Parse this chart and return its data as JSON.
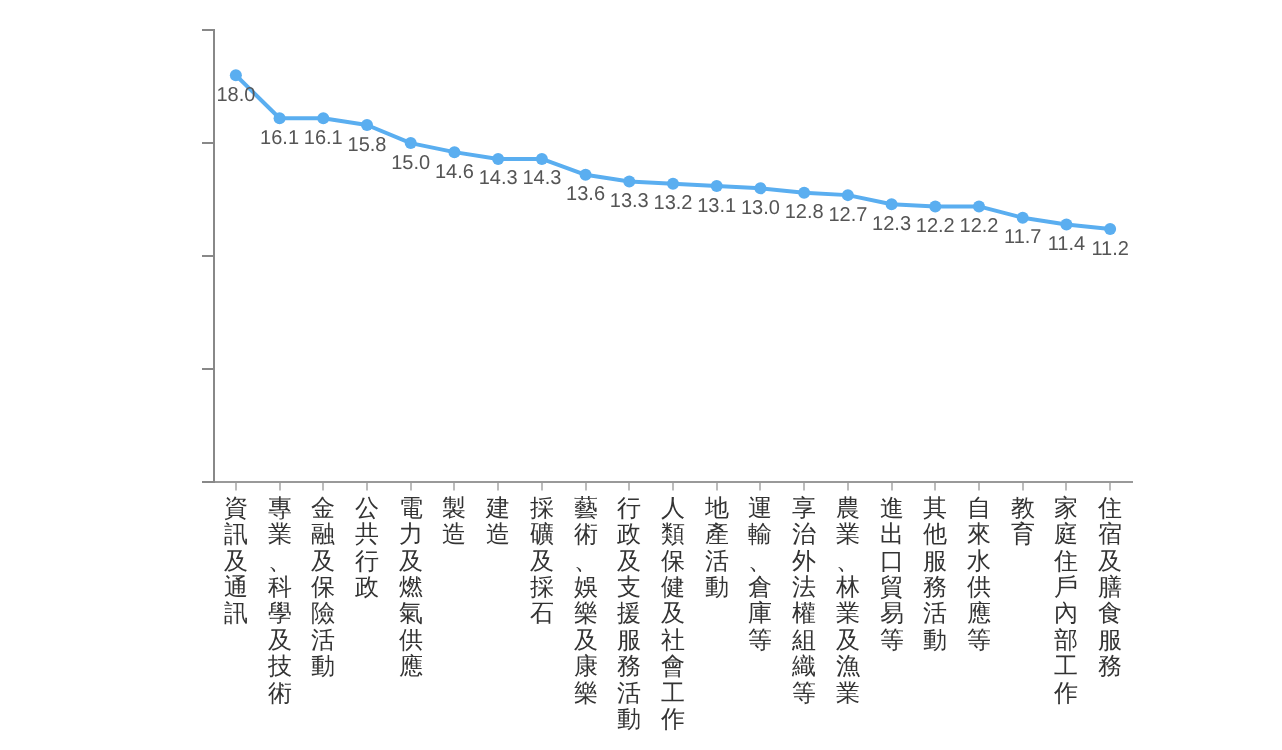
{
  "chart_data": {
    "type": "line",
    "categories": [
      "資訊及通訊",
      "專業、科學及技術",
      "金融及保險活動",
      "公共行政",
      "電力及燃氣供應",
      "製造",
      "建造",
      "採礦及採石",
      "藝術、娛樂及康樂",
      "行政及支援服務活動",
      "人類保健及社會工作",
      "地產活動",
      "運輸、倉庫等",
      "享治外法權組織等",
      "農業、林業及漁業",
      "進出口貿易等",
      "其他服務活動",
      "自來水供應等",
      "教育",
      "家庭住戶內部工作",
      "住宿及膳食服務"
    ],
    "series": [
      {
        "color": "#5aaef0",
        "values": [
          18.0,
          16.1,
          16.1,
          15.8,
          15.0,
          14.6,
          14.3,
          14.3,
          13.6,
          13.3,
          13.2,
          13.1,
          13.0,
          12.8,
          12.7,
          12.3,
          12.2,
          12.2,
          11.7,
          11.4,
          11.2
        ],
        "value_labels": [
          "18.0",
          "16.1",
          "16.1",
          "15.8",
          "15.0",
          "14.6",
          "14.3",
          "14.3",
          "13.6",
          "13.3",
          "13.2",
          "13.1",
          "13.0",
          "12.8",
          "12.7",
          "12.3",
          "12.2",
          "12.2",
          "11.7",
          "11.4",
          "11.2"
        ]
      }
    ],
    "ylim": [
      0,
      20
    ],
    "yticks": [
      {
        "value": 0,
        "label": null
      },
      {
        "value": 5,
        "label": null
      },
      {
        "value": 10,
        "label": null
      },
      {
        "value": 15,
        "label": null
      },
      {
        "value": 20,
        "label": null
      }
    ],
    "tick_labels": "x",
    "grid": false,
    "legend": false,
    "marker": "circle",
    "line_style": "solid"
  }
}
